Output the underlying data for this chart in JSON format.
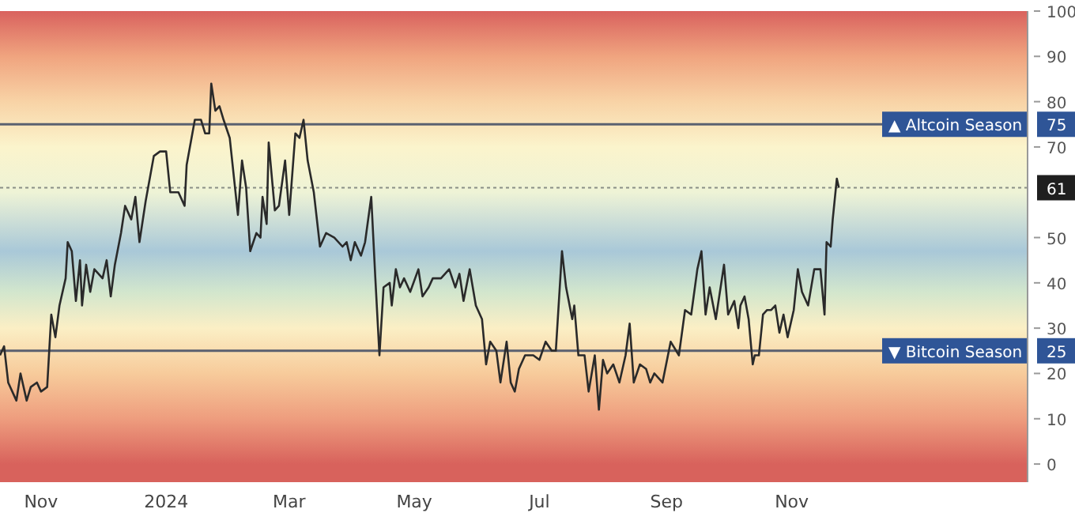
{
  "chart_data": {
    "type": "line",
    "color": "#2a2a2a",
    "marker": "none",
    "line_style": "solid",
    "x": [
      "2023-10-12",
      "2023-10-14",
      "2023-10-16",
      "2023-10-20",
      "2023-10-22",
      "2023-10-25",
      "2023-10-27",
      "2023-10-30",
      "2023-11-01",
      "2023-11-04",
      "2023-11-06",
      "2023-11-08",
      "2023-11-10",
      "2023-11-13",
      "2023-11-14",
      "2023-11-16",
      "2023-11-18",
      "2023-11-20",
      "2023-11-21",
      "2023-11-23",
      "2023-11-25",
      "2023-11-27",
      "2023-12-01",
      "2023-12-03",
      "2023-12-05",
      "2023-12-07",
      "2023-12-10",
      "2023-12-12",
      "2023-12-15",
      "2023-12-17",
      "2023-12-19",
      "2023-12-22",
      "2023-12-26",
      "2023-12-29",
      "2024-01-01",
      "2024-01-03",
      "2024-01-07",
      "2024-01-10",
      "2024-01-11",
      "2024-01-15",
      "2024-01-18",
      "2024-01-20",
      "2024-01-22",
      "2024-01-23",
      "2024-01-25",
      "2024-01-27",
      "2024-01-29",
      "2024-02-01",
      "2024-02-05",
      "2024-02-07",
      "2024-02-09",
      "2024-02-11",
      "2024-02-14",
      "2024-02-16",
      "2024-02-17",
      "2024-02-19",
      "2024-02-20",
      "2024-02-23",
      "2024-02-25",
      "2024-02-28",
      "2024-03-01",
      "2024-03-04",
      "2024-03-06",
      "2024-03-08",
      "2024-03-10",
      "2024-03-13",
      "2024-03-14",
      "2024-03-16",
      "2024-03-19",
      "2024-03-23",
      "2024-03-27",
      "2024-03-29",
      "2024-03-31",
      "2024-04-02",
      "2024-04-05",
      "2024-04-07",
      "2024-04-10",
      "2024-04-12",
      "2024-04-14",
      "2024-04-16",
      "2024-04-19",
      "2024-04-20",
      "2024-04-22",
      "2024-04-24",
      "2024-04-26",
      "2024-04-29",
      "2024-05-03",
      "2024-05-05",
      "2024-05-08",
      "2024-05-10",
      "2024-05-14",
      "2024-05-18",
      "2024-05-21",
      "2024-05-23",
      "2024-05-25",
      "2024-05-28",
      "2024-05-31",
      "2024-06-03",
      "2024-06-05",
      "2024-06-07",
      "2024-06-10",
      "2024-06-12",
      "2024-06-15",
      "2024-06-17",
      "2024-06-19",
      "2024-06-21",
      "2024-06-24",
      "2024-06-28",
      "2024-07-01",
      "2024-07-04",
      "2024-07-07",
      "2024-07-09",
      "2024-07-12",
      "2024-07-14",
      "2024-07-17",
      "2024-07-18",
      "2024-07-20",
      "2024-07-23",
      "2024-07-25",
      "2024-07-28",
      "2024-07-30",
      "2024-08-01",
      "2024-08-03",
      "2024-08-06",
      "2024-08-09",
      "2024-08-12",
      "2024-08-14",
      "2024-08-16",
      "2024-08-19",
      "2024-08-22",
      "2024-08-24",
      "2024-08-26",
      "2024-08-30",
      "2024-09-03",
      "2024-09-07",
      "2024-09-10",
      "2024-09-13",
      "2024-09-16",
      "2024-09-18",
      "2024-09-20",
      "2024-09-22",
      "2024-09-25",
      "2024-09-29",
      "2024-10-01",
      "2024-10-04",
      "2024-10-06",
      "2024-10-07",
      "2024-10-09",
      "2024-10-11",
      "2024-10-13",
      "2024-10-14",
      "2024-10-16",
      "2024-10-18",
      "2024-10-20",
      "2024-10-22",
      "2024-10-24",
      "2024-10-26",
      "2024-10-28",
      "2024-10-30",
      "2024-11-02",
      "2024-11-04",
      "2024-11-06",
      "2024-11-09",
      "2024-11-12",
      "2024-11-15",
      "2024-11-17",
      "2024-11-18",
      "2024-11-20",
      "2024-11-21",
      "2024-11-23",
      "2024-11-24"
    ],
    "values": [
      24,
      26,
      18,
      14,
      20,
      14,
      17,
      18,
      16,
      17,
      33,
      28,
      35,
      41,
      49,
      47,
      36,
      45,
      35,
      44,
      38,
      43,
      41,
      45,
      37,
      44,
      51,
      57,
      54,
      59,
      49,
      58,
      68,
      69,
      69,
      60,
      60,
      57,
      66,
      76,
      76,
      73,
      73,
      84,
      78,
      79,
      76,
      72,
      55,
      67,
      61,
      47,
      51,
      50,
      59,
      53,
      71,
      56,
      57,
      67,
      55,
      73,
      72,
      76,
      67,
      60,
      56,
      48,
      51,
      50,
      48,
      49,
      45,
      49,
      46,
      49,
      59,
      41,
      24,
      39,
      40,
      35,
      43,
      39,
      41,
      38,
      43,
      37,
      39,
      41,
      41,
      43,
      39,
      42,
      36,
      43,
      35,
      32,
      22,
      27,
      25,
      18,
      27,
      18,
      16,
      21,
      24,
      24,
      23,
      27,
      25,
      25,
      47,
      39,
      32,
      35,
      24,
      24,
      16,
      24,
      12,
      23,
      20,
      22,
      18,
      24,
      31,
      18,
      22,
      21,
      18,
      20,
      18,
      27,
      24,
      34,
      33,
      43,
      47,
      33,
      39,
      32,
      44,
      33,
      36,
      30,
      35,
      37,
      32,
      22,
      24,
      24,
      33,
      34,
      34,
      35,
      29,
      33,
      28,
      34,
      43,
      38,
      35,
      43,
      43,
      33,
      49,
      48,
      54,
      63,
      61
    ],
    "xlim": [
      "2023-10-12",
      "2025-02-24"
    ],
    "xticks": [
      {
        "value": "2023-11-01",
        "label": "Nov"
      },
      {
        "value": "2024-01-01",
        "label": "2024"
      },
      {
        "value": "2024-03-01",
        "label": "Mar"
      },
      {
        "value": "2024-05-01",
        "label": "May"
      },
      {
        "value": "2024-07-01",
        "label": "Jul"
      },
      {
        "value": "2024-09-01",
        "label": "Sep"
      },
      {
        "value": "2024-11-01",
        "label": "Nov"
      }
    ],
    "ylim": [
      -4,
      100
    ],
    "yticks": [
      0,
      10,
      20,
      25,
      30,
      40,
      50,
      61,
      70,
      75,
      80,
      90,
      100
    ],
    "ref_lines": [
      {
        "axis": "y",
        "value": 75,
        "label": "▲ Altcoin Season",
        "color": "#5a6070",
        "line_style": "solid"
      },
      {
        "axis": "y",
        "value": 25,
        "label": "▼ Bitcoin Season",
        "color": "#5a6070",
        "line_style": "solid"
      },
      {
        "axis": "y",
        "value": 61,
        "label": null,
        "color": "#8a8f86",
        "line_style": "dotted"
      }
    ]
  }
}
